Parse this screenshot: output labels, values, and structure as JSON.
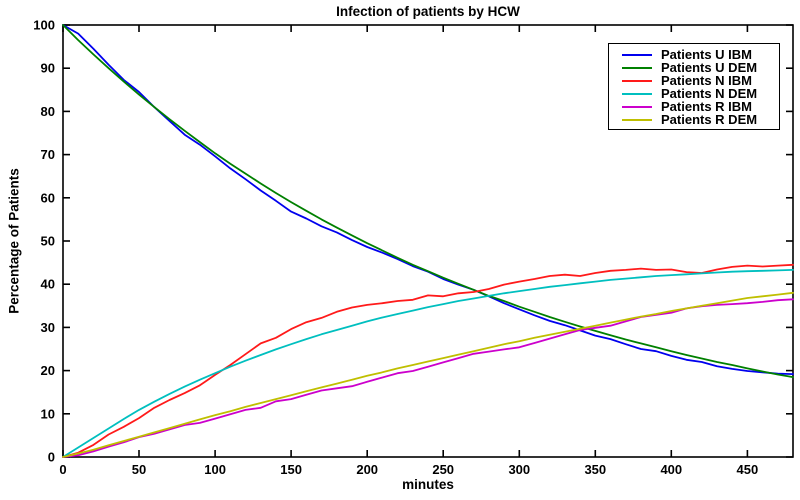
{
  "chart_data": {
    "type": "line",
    "title": "Infection of patients by HCW",
    "xlabel": "minutes",
    "ylabel": "Percentage of Patients",
    "xlim": [
      0,
      480
    ],
    "ylim": [
      0,
      100
    ],
    "xticks": [
      0,
      50,
      100,
      150,
      200,
      250,
      300,
      350,
      400,
      450
    ],
    "yticks": [
      0,
      10,
      20,
      30,
      40,
      50,
      60,
      70,
      80,
      90,
      100
    ],
    "grid": false,
    "legend_position": "top-right",
    "x": [
      0,
      10,
      20,
      30,
      40,
      50,
      60,
      70,
      80,
      90,
      100,
      110,
      120,
      130,
      140,
      150,
      160,
      170,
      180,
      190,
      200,
      210,
      220,
      230,
      240,
      250,
      260,
      270,
      280,
      290,
      300,
      310,
      320,
      330,
      340,
      350,
      360,
      370,
      380,
      390,
      400,
      410,
      420,
      430,
      440,
      450,
      460,
      470,
      480
    ],
    "series": [
      {
        "name": "Patients U IBM",
        "color": "#0000ee",
        "values": [
          100,
          98,
          94.5,
          90.8,
          87.3,
          84.5,
          81,
          77.8,
          74.6,
          72.3,
          69.6,
          66.8,
          64.3,
          61.7,
          59.3,
          56.8,
          55.2,
          53.4,
          52,
          50.2,
          48.6,
          47.3,
          45.8,
          44.2,
          42.9,
          41.2,
          39.9,
          38.7,
          37.2,
          35.6,
          34.2,
          32.8,
          31.5,
          30.5,
          29.3,
          28.1,
          27.3,
          26.1,
          25,
          24.5,
          23.4,
          22.5,
          22,
          21,
          20.4,
          19.9,
          19.6,
          19.3,
          19.2
        ]
      },
      {
        "name": "Patients U DEM",
        "color": "#008000",
        "values": [
          100,
          96.5,
          93.2,
          90,
          86.9,
          83.9,
          81,
          78.2,
          75.5,
          72.9,
          70.3,
          67.9,
          65.6,
          63.3,
          61.1,
          59,
          57,
          55,
          53.1,
          51.3,
          49.5,
          47.8,
          46.1,
          44.5,
          43,
          41.5,
          40.1,
          38.7,
          37.3,
          36.1,
          34.8,
          33.6,
          32.4,
          31.3,
          30.2,
          29.2,
          28.2,
          27.2,
          26.3,
          25.4,
          24.5,
          23.6,
          22.8,
          22,
          21.3,
          20.5,
          19.8,
          19.1,
          18.5
        ]
      },
      {
        "name": "Patients N IBM",
        "color": "#ff1a1a",
        "values": [
          0,
          1,
          2.8,
          5.2,
          7,
          9,
          11.4,
          13.2,
          14.8,
          16.6,
          19,
          21.3,
          23.8,
          26.3,
          27.6,
          29.6,
          31.2,
          32.2,
          33.6,
          34.6,
          35.2,
          35.6,
          36.1,
          36.4,
          37.4,
          37.2,
          37.9,
          38.2,
          38.9,
          39.9,
          40.6,
          41.2,
          41.9,
          42.2,
          41.9,
          42.6,
          43.1,
          43.3,
          43.6,
          43.3,
          43.4,
          42.8,
          42.6,
          43.4,
          44,
          44.3,
          44.1,
          44.3,
          44.5
        ]
      },
      {
        "name": "Patients N DEM",
        "color": "#00bfbf",
        "values": [
          0,
          2.2,
          4.4,
          6.6,
          8.8,
          10.9,
          12.8,
          14.6,
          16.3,
          17.9,
          19.4,
          20.9,
          22.3,
          23.6,
          24.9,
          26.1,
          27.3,
          28.4,
          29.4,
          30.4,
          31.4,
          32.3,
          33.1,
          33.9,
          34.7,
          35.4,
          36.1,
          36.7,
          37.3,
          37.9,
          38.4,
          38.9,
          39.4,
          39.8,
          40.2,
          40.6,
          41,
          41.3,
          41.6,
          41.9,
          42.1,
          42.3,
          42.5,
          42.7,
          42.9,
          43,
          43.1,
          43.2,
          43.3
        ]
      },
      {
        "name": "Patients R IBM",
        "color": "#cc00cc",
        "values": [
          0,
          0.4,
          1.3,
          2.4,
          3.4,
          4.6,
          5.4,
          6.4,
          7.4,
          7.9,
          8.9,
          9.9,
          10.9,
          11.4,
          12.9,
          13.4,
          14.4,
          15.4,
          15.9,
          16.4,
          17.4,
          18.4,
          19.4,
          19.9,
          20.9,
          21.9,
          22.9,
          23.9,
          24.4,
          24.9,
          25.4,
          26.4,
          27.4,
          28.4,
          29.4,
          29.9,
          30.4,
          31.4,
          32.4,
          32.9,
          33.4,
          34.4,
          34.9,
          35.2,
          35.4,
          35.6,
          35.9,
          36.3,
          36.5
        ]
      },
      {
        "name": "Patients R DEM",
        "color": "#bfbf00",
        "values": [
          0,
          0.8,
          1.7,
          2.7,
          3.7,
          4.7,
          5.7,
          6.7,
          7.7,
          8.7,
          9.7,
          10.6,
          11.6,
          12.5,
          13.4,
          14.3,
          15.2,
          16.1,
          17,
          17.9,
          18.8,
          19.6,
          20.5,
          21.3,
          22.1,
          22.9,
          23.7,
          24.5,
          25.3,
          26.1,
          26.8,
          27.6,
          28.3,
          29,
          29.7,
          30.4,
          31.1,
          31.8,
          32.5,
          33.1,
          33.8,
          34.4,
          35,
          35.6,
          36.2,
          36.8,
          37.2,
          37.6,
          38
        ]
      }
    ]
  }
}
